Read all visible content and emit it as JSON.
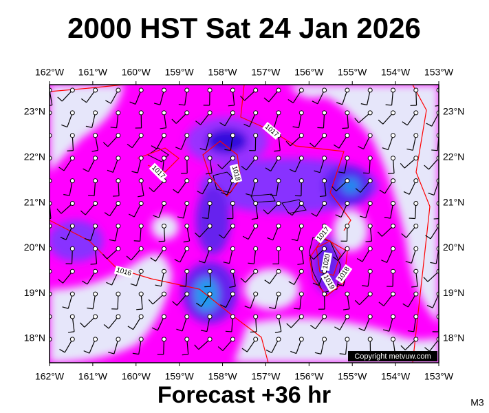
{
  "header": {
    "title": "2000 HST Sat 24 Jan 2026"
  },
  "map": {
    "lon_labels": [
      "162°W",
      "161°W",
      "160°W",
      "159°W",
      "158°W",
      "157°W",
      "156°W",
      "155°W",
      "154°W",
      "153°W"
    ],
    "lat_labels": [
      "23°N",
      "22°N",
      "21°N",
      "20°N",
      "19°N",
      "18°N"
    ],
    "contour_labels": [
      "1017",
      "1017",
      "1018",
      "1016",
      "1017",
      "1020",
      "1019",
      "1018"
    ],
    "copyright": "Copyright metvuw.com"
  },
  "footer": {
    "forecast": "Forecast +36 hr",
    "model": "M3"
  }
}
